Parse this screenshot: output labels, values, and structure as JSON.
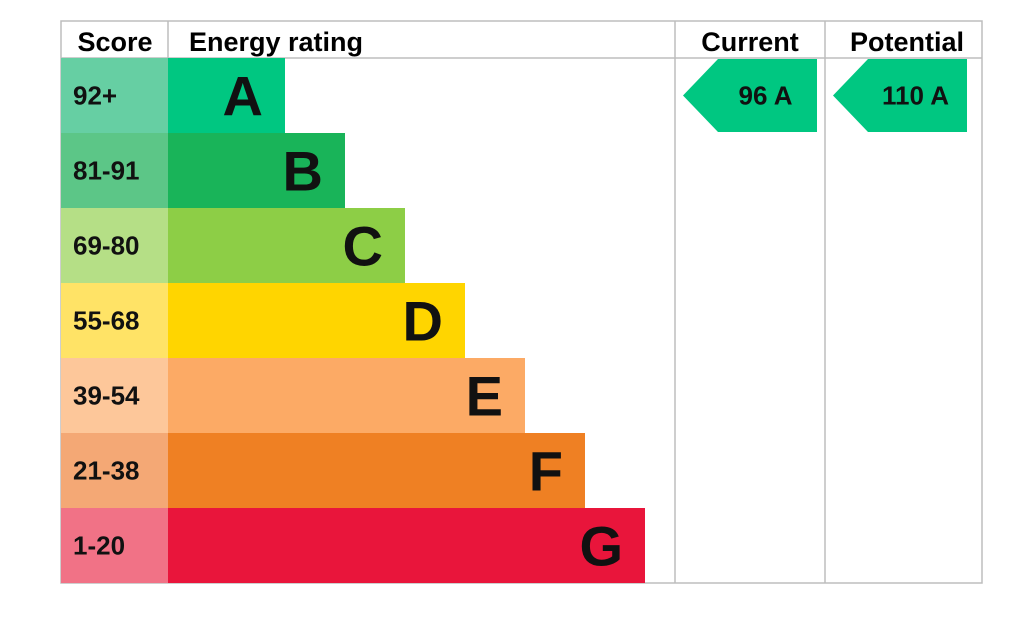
{
  "chart_data": {
    "type": "table",
    "headers": {
      "score": "Score",
      "rating": "Energy rating",
      "current": "Current",
      "potential": "Potential"
    },
    "bands": [
      {
        "score": "92+",
        "letter": "A",
        "color": "#00c781",
        "score_bg": "#66cfa3"
      },
      {
        "score": "81-91",
        "letter": "B",
        "color": "#19b459",
        "score_bg": "#5cc687"
      },
      {
        "score": "69-80",
        "letter": "C",
        "color": "#8dce46",
        "score_bg": "#b5df86"
      },
      {
        "score": "55-68",
        "letter": "D",
        "color": "#ffd500",
        "score_bg": "#ffe366"
      },
      {
        "score": "39-54",
        "letter": "E",
        "color": "#fcaa65",
        "score_bg": "#fdc79a"
      },
      {
        "score": "21-38",
        "letter": "F",
        "color": "#ef8023",
        "score_bg": "#f4a875"
      },
      {
        "score": "1-20",
        "letter": "G",
        "color": "#e9153b",
        "score_bg": "#f17286"
      }
    ],
    "current": {
      "value": 96,
      "letter": "A",
      "label": "96  A",
      "color": "#00c781"
    },
    "potential": {
      "value": 110,
      "letter": "A",
      "label": "110  A",
      "color": "#00c781"
    }
  }
}
